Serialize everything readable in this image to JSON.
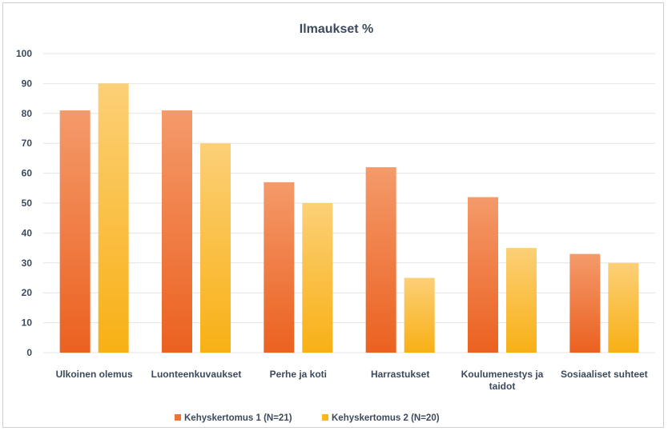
{
  "chart_data": {
    "type": "bar",
    "title": "Ilmaukset %",
    "categories": [
      [
        "Ulkoinen olemus"
      ],
      [
        "Luonteenkuvaukset"
      ],
      [
        "Perhe ja koti"
      ],
      [
        "Harrastukset"
      ],
      [
        "Koulumenestys ja",
        "taidot"
      ],
      [
        "Sosiaaliset suhteet"
      ]
    ],
    "series": [
      {
        "name": "Kehyskertomus 1 (N=21)",
        "values": [
          81,
          81,
          57,
          62,
          52,
          33
        ],
        "color": "#ee7536"
      },
      {
        "name": "Kehyskertomus 2 (N=20)",
        "values": [
          90,
          70,
          50,
          25,
          35,
          30
        ],
        "color": "#f9b71f"
      }
    ],
    "ylim": [
      0,
      100
    ],
    "yticks": [
      "0",
      "10",
      "20",
      "30",
      "40",
      "50",
      "60",
      "70",
      "80",
      "90",
      "100"
    ],
    "grid": true,
    "legend": "bottom"
  }
}
